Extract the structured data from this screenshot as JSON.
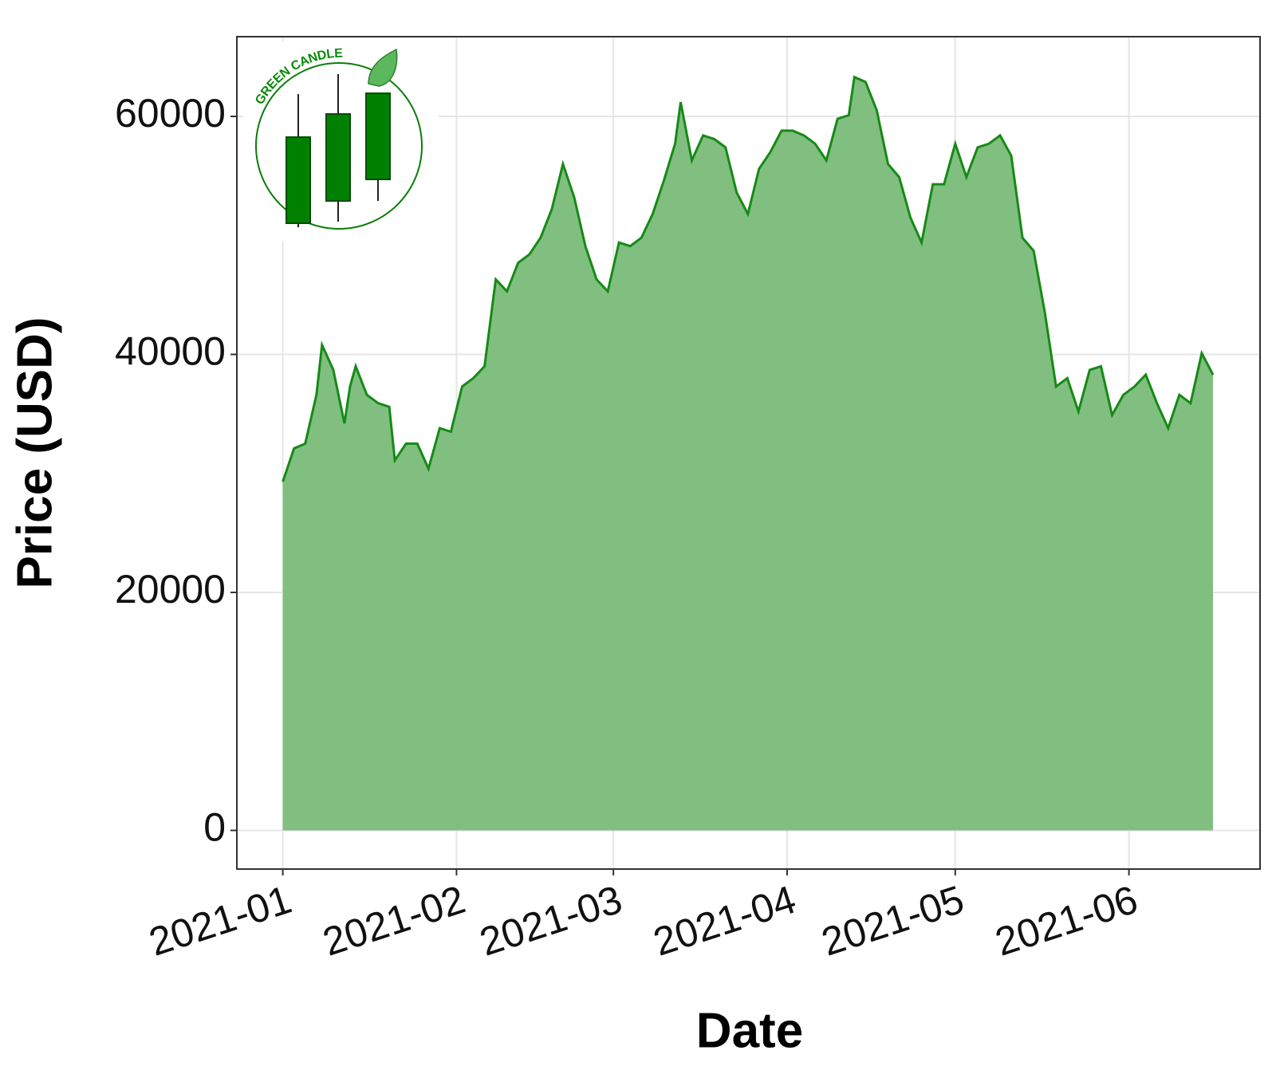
{
  "chart_data": {
    "type": "area",
    "x_label": "Date",
    "y_label": "Price (USD)",
    "x": [
      0,
      2,
      4,
      6,
      7,
      9,
      11,
      12,
      13,
      15,
      17,
      19,
      20,
      22,
      24,
      26,
      28,
      30,
      32,
      34,
      36,
      38,
      40,
      42,
      44,
      46,
      48,
      50,
      52,
      54,
      56,
      58,
      60,
      62,
      64,
      66,
      68,
      70,
      71,
      73,
      75,
      77,
      79,
      81,
      83,
      85,
      87,
      89,
      91,
      93,
      95,
      97,
      99,
      101,
      102,
      104,
      106,
      108,
      110,
      112,
      114,
      116,
      118,
      120,
      122,
      124,
      126,
      128,
      130,
      132,
      134,
      136,
      138,
      140,
      142,
      144,
      146,
      148,
      150,
      152,
      154,
      156,
      158,
      160,
      162,
      164,
      166
    ],
    "values": [
      29300,
      32100,
      32500,
      36600,
      40800,
      38700,
      34200,
      37300,
      39000,
      36600,
      35900,
      35600,
      31100,
      32500,
      32500,
      30400,
      33800,
      33500,
      37300,
      38000,
      39000,
      46300,
      45300,
      47700,
      48400,
      49800,
      52200,
      56000,
      53200,
      49100,
      46300,
      45300,
      49400,
      49100,
      49800,
      51800,
      54600,
      57700,
      61200,
      56300,
      58400,
      58100,
      57400,
      53600,
      51800,
      55600,
      57000,
      58800,
      58800,
      58400,
      57700,
      56300,
      59800,
      60100,
      63300,
      62900,
      60500,
      56000,
      54900,
      51500,
      49400,
      54300,
      54300,
      57700,
      54900,
      57400,
      57700,
      58400,
      56700,
      49800,
      48700,
      43500,
      37300,
      38000,
      35200,
      38700,
      39000,
      34900,
      36600,
      37300,
      38300,
      35900,
      33800,
      36600,
      35900,
      40100,
      38300
    ],
    "color": "#168a16",
    "fill": "#80bf80",
    "xlim": [
      -8.2,
      174.4
    ],
    "xticks": [
      {
        "value": 0,
        "label": "2021-01"
      },
      {
        "value": 31,
        "label": "2021-02"
      },
      {
        "value": 59,
        "label": "2021-03"
      },
      {
        "value": 90,
        "label": "2021-04"
      },
      {
        "value": 120,
        "label": "2021-05"
      },
      {
        "value": 151,
        "label": "2021-06"
      }
    ],
    "ylim": [
      -3250,
      66700
    ],
    "yticks": [
      0,
      20000,
      40000,
      60000
    ],
    "grid": true
  },
  "logo": {
    "text": "GREEN CANDLE"
  }
}
